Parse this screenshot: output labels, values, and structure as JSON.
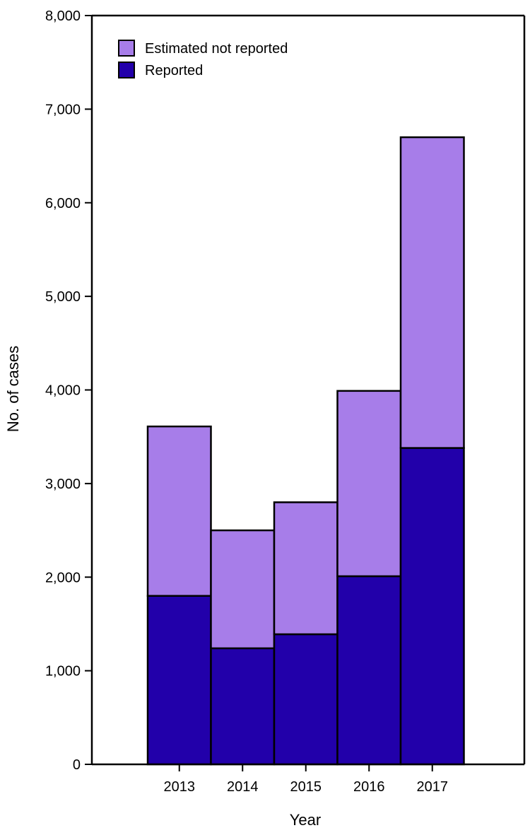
{
  "chart_data": {
    "type": "bar",
    "stacked": true,
    "title": "",
    "xlabel": "Year",
    "ylabel": "No. of cases",
    "categories": [
      "2013",
      "2014",
      "2015",
      "2016",
      "2017"
    ],
    "series": [
      {
        "name": "Reported",
        "values": [
          1800,
          1240,
          1390,
          2010,
          3380
        ],
        "color": "#2200aa"
      },
      {
        "name": "Estimated not reported",
        "values": [
          1810,
          1260,
          1410,
          1980,
          3320
        ],
        "color": "#a77de9"
      }
    ],
    "ylim": [
      0,
      8000
    ],
    "yticks": [
      "0",
      "1,000",
      "2,000",
      "3,000",
      "4,000",
      "5,000",
      "6,000",
      "7,000",
      "8,000"
    ],
    "ytick_values": [
      0,
      1000,
      2000,
      3000,
      4000,
      5000,
      6000,
      7000,
      8000
    ],
    "grid": false,
    "legend": {
      "placement": "top-left",
      "order": [
        "Estimated not reported",
        "Reported"
      ]
    }
  }
}
